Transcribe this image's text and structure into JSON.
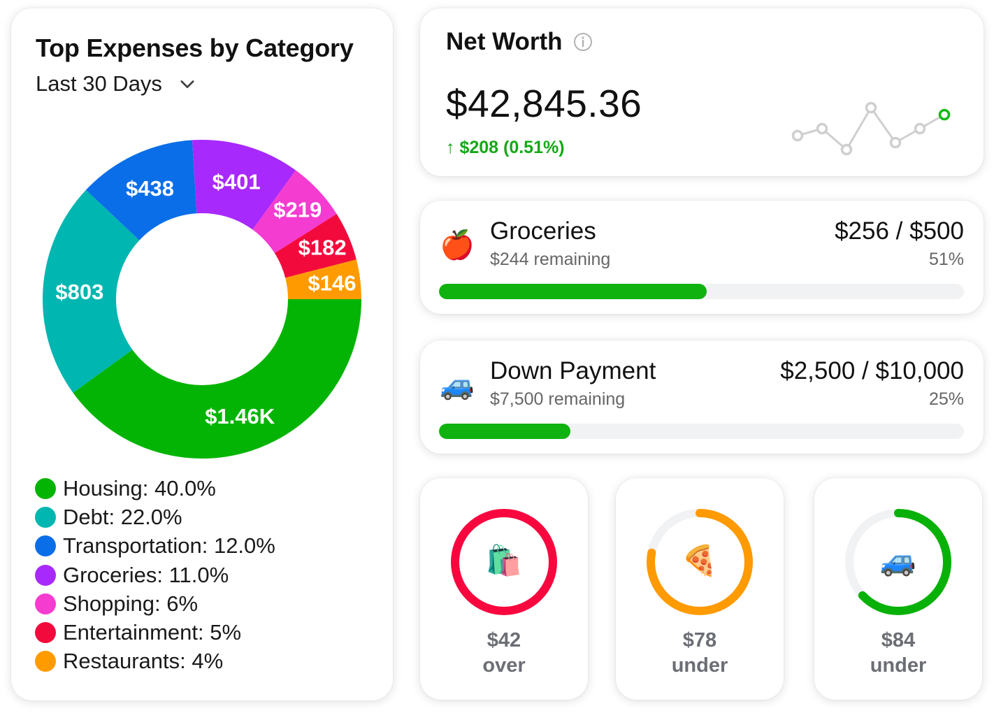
{
  "expenses": {
    "title": "Top Expenses by Category",
    "range_label": "Last 30 Days",
    "chart_data": {
      "type": "pie",
      "style": "donut",
      "slices": [
        {
          "name": "Housing",
          "value": 1460,
          "label": "$1.46K",
          "percent": 40.0,
          "color": "#04b404"
        },
        {
          "name": "Debt",
          "value": 803,
          "label": "$803",
          "percent": 22.0,
          "color": "#00b6b0"
        },
        {
          "name": "Transportation",
          "value": 438,
          "label": "$438",
          "percent": 12.0,
          "color": "#0a6ee8"
        },
        {
          "name": "Groceries",
          "value": 401,
          "label": "$401",
          "percent": 11.0,
          "color": "#a829fb"
        },
        {
          "name": "Shopping",
          "value": 219,
          "label": "$219",
          "percent": 6,
          "color": "#f43cd1"
        },
        {
          "name": "Entertainment",
          "value": 182,
          "label": "$182",
          "percent": 5,
          "color": "#f30a3c"
        },
        {
          "name": "Restaurants",
          "value": 146,
          "label": "$146",
          "percent": 4,
          "color": "#ff9b00"
        }
      ]
    },
    "legend": [
      {
        "text": "Housing: 40.0%",
        "color": "#04b404"
      },
      {
        "text": "Debt: 22.0%",
        "color": "#00b6b0"
      },
      {
        "text": "Transportation: 12.0%",
        "color": "#0a6ee8"
      },
      {
        "text": "Groceries: 11.0%",
        "color": "#a829fb"
      },
      {
        "text": "Shopping: 6%",
        "color": "#f43cd1"
      },
      {
        "text": "Entertainment: 5%",
        "color": "#f30a3c"
      },
      {
        "text": "Restaurants: 4%",
        "color": "#ff9b00"
      }
    ]
  },
  "net_worth": {
    "title": "Net Worth",
    "info_icon": "info-icon",
    "value": "$42,845.36",
    "change": "↑ $208 (0.51%)",
    "change_color": "#16a817",
    "sparkline": {
      "values": [
        3,
        4,
        1,
        7,
        2,
        4,
        6
      ],
      "color": "#cfcfcf",
      "last_point_color": "#16b816"
    }
  },
  "goals": [
    {
      "emoji": "🍎",
      "name": "Groceries",
      "remaining": "$244 remaining",
      "amount": "$256 / $500",
      "percent_text": "51%",
      "progress": 0.51
    },
    {
      "emoji": "🚙",
      "name": "Down Payment",
      "remaining": "$7,500 remaining",
      "amount": "$2,500 / $10,000",
      "percent_text": "25%",
      "progress": 0.25
    }
  ],
  "budgets": [
    {
      "emoji": "🛍️",
      "amount": "$42",
      "label": "over",
      "progress": 1.0,
      "color": "#f8073f"
    },
    {
      "emoji": "🍕",
      "amount": "$78",
      "label": "under",
      "progress": 0.78,
      "color": "#ff9a00"
    },
    {
      "emoji": "🚙",
      "amount": "$84",
      "label": "under",
      "progress": 0.63,
      "color": "#07b107"
    }
  ],
  "colors": {
    "track": "#f1f2f4",
    "progress_green": "#0fb20f"
  }
}
